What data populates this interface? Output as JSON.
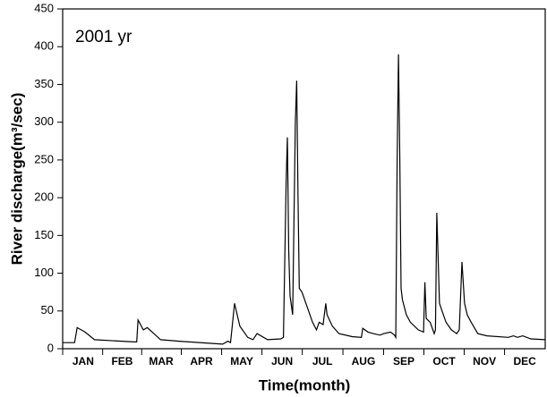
{
  "chart_data": {
    "type": "line",
    "annotation": "2001 yr",
    "xlabel": "Time(month)",
    "ylabel": "River discharge(m³/sec)",
    "xlim": [
      0,
      365
    ],
    "xticks": [
      {
        "value": 15.5,
        "label": "JAN"
      },
      {
        "value": 45,
        "label": "FEB"
      },
      {
        "value": 74.5,
        "label": "MAR"
      },
      {
        "value": 105,
        "label": "APR"
      },
      {
        "value": 135.5,
        "label": "MAY"
      },
      {
        "value": 166,
        "label": "JUN"
      },
      {
        "value": 196.5,
        "label": "JUL"
      },
      {
        "value": 227.5,
        "label": "AUG"
      },
      {
        "value": 258,
        "label": "SEP"
      },
      {
        "value": 288.5,
        "label": "OCT"
      },
      {
        "value": 319,
        "label": "NOV"
      },
      {
        "value": 349.5,
        "label": "DEC"
      }
    ],
    "ylim": [
      0,
      450
    ],
    "yticks": [
      0,
      50,
      100,
      150,
      200,
      250,
      300,
      350,
      400,
      450
    ],
    "x": [
      0,
      9,
      11,
      17,
      24,
      54,
      56,
      57,
      61,
      64,
      69,
      74,
      88,
      121,
      125,
      127,
      130,
      134,
      140,
      144,
      147,
      155,
      165,
      167,
      169,
      170,
      171,
      172,
      174,
      176,
      177,
      178,
      179,
      181,
      186,
      189,
      192,
      194,
      197,
      199,
      200,
      204,
      209,
      219,
      226,
      227,
      231,
      235,
      240,
      243,
      248,
      251,
      252,
      253,
      254,
      255,
      256,
      257,
      260,
      263,
      269,
      273,
      274,
      275,
      278,
      281,
      282,
      283,
      285,
      287,
      290,
      294,
      298,
      300,
      302,
      304,
      306,
      309,
      314,
      321,
      337,
      341,
      344,
      348,
      354,
      365
    ],
    "series": [
      {
        "color": "#000000",
        "values": [
          8,
          8,
          28,
          22,
          12,
          9,
          9,
          38,
          25,
          28,
          20,
          12,
          10,
          6,
          10,
          8,
          60,
          30,
          15,
          12,
          20,
          12,
          13,
          15,
          220,
          280,
          130,
          70,
          45,
          300,
          355,
          200,
          80,
          75,
          50,
          35,
          25,
          35,
          32,
          60,
          45,
          30,
          20,
          16,
          15,
          27,
          22,
          20,
          18,
          20,
          22,
          18,
          15,
          250,
          390,
          250,
          80,
          65,
          45,
          35,
          25,
          22,
          88,
          40,
          35,
          20,
          25,
          180,
          60,
          50,
          35,
          25,
          20,
          25,
          115,
          60,
          45,
          35,
          20,
          17,
          15,
          17,
          15,
          17,
          13,
          12
        ]
      }
    ]
  }
}
